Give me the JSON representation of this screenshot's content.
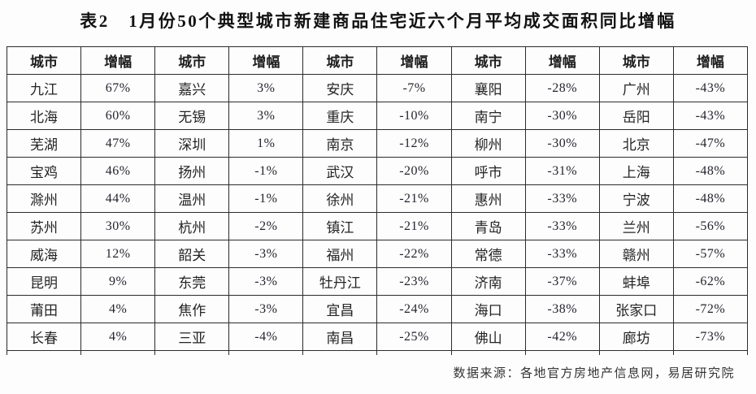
{
  "title": "表2　1月份50个典型城市新建商品住宅近六个月平均成交面积同比增幅",
  "table": {
    "headers": [
      "城市",
      "增幅",
      "城市",
      "增幅",
      "城市",
      "增幅",
      "城市",
      "增幅",
      "城市",
      "增幅"
    ],
    "rows": [
      [
        "九江",
        "67%",
        "嘉兴",
        "3%",
        "安庆",
        "-7%",
        "襄阳",
        "-28%",
        "广州",
        "-43%"
      ],
      [
        "北海",
        "60%",
        "无锡",
        "3%",
        "重庆",
        "-10%",
        "南宁",
        "-30%",
        "岳阳",
        "-43%"
      ],
      [
        "芜湖",
        "47%",
        "深圳",
        "1%",
        "南京",
        "-12%",
        "柳州",
        "-30%",
        "北京",
        "-47%"
      ],
      [
        "宝鸡",
        "46%",
        "扬州",
        "-1%",
        "武汉",
        "-20%",
        "呼市",
        "-31%",
        "上海",
        "-48%"
      ],
      [
        "滁州",
        "44%",
        "温州",
        "-1%",
        "徐州",
        "-21%",
        "惠州",
        "-33%",
        "宁波",
        "-48%"
      ],
      [
        "苏州",
        "30%",
        "杭州",
        "-2%",
        "镇江",
        "-21%",
        "青岛",
        "-33%",
        "兰州",
        "-56%"
      ],
      [
        "威海",
        "12%",
        "韶关",
        "-3%",
        "福州",
        "-22%",
        "常德",
        "-33%",
        "赣州",
        "-57%"
      ],
      [
        "昆明",
        "9%",
        "东莞",
        "-3%",
        "牡丹江",
        "-23%",
        "济南",
        "-37%",
        "蚌埠",
        "-62%"
      ],
      [
        "莆田",
        "4%",
        "焦作",
        "-3%",
        "宜昌",
        "-24%",
        "海口",
        "-38%",
        "张家口",
        "-72%"
      ],
      [
        "长春",
        "4%",
        "三亚",
        "-4%",
        "南昌",
        "-25%",
        "佛山",
        "-42%",
        "廊坊",
        "-73%"
      ]
    ]
  },
  "footer": {
    "source": "数据来源：各地官方房地产信息网，易居研究院"
  },
  "colors": {
    "border": "#2b2b2b",
    "text": "#262626",
    "title": "#121212",
    "background": "#fdfdfd"
  }
}
